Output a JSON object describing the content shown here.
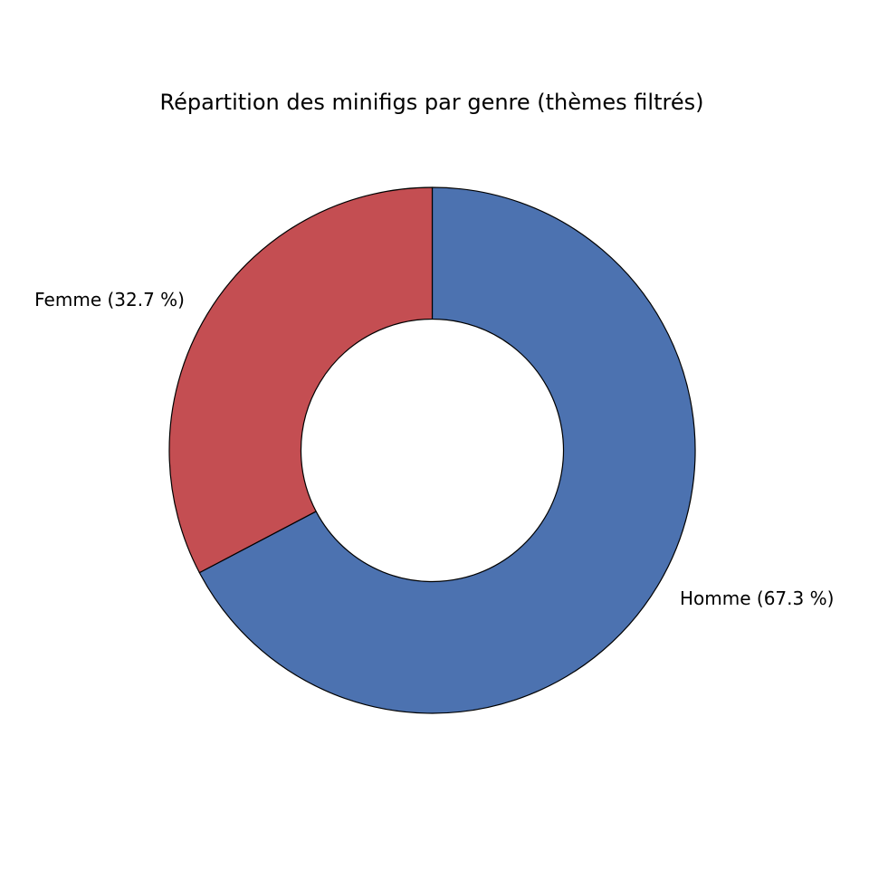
{
  "chart_data": {
    "type": "pie",
    "variant": "donut",
    "title": "Répartition des minifigs par genre (thèmes filtrés)",
    "start_angle_deg": 90,
    "direction": "clockwise",
    "slices": [
      {
        "name": "Homme",
        "value": 67.3,
        "label": "Homme (67.3 %)",
        "color": "#4c72b0"
      },
      {
        "name": "Femme",
        "value": 32.7,
        "label": "Femme (32.7 %)",
        "color": "#c44e52"
      }
    ],
    "edge_color": "#000000",
    "legend": "none"
  }
}
